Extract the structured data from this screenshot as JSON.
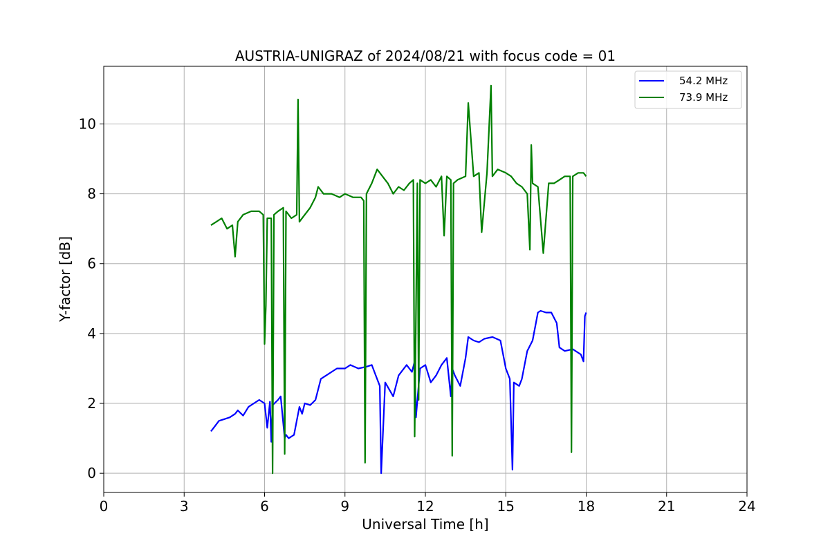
{
  "chart_data": {
    "type": "line",
    "title": "AUSTRIA-UNIGRAZ of 2024/08/21 with focus code = 01",
    "xlabel": "Universal Time [h]",
    "ylabel": "Y-factor [dB]",
    "xlim": [
      0,
      24
    ],
    "ylim": [
      -0.55,
      11.65
    ],
    "xticks": [
      0,
      3,
      6,
      9,
      12,
      15,
      18,
      21,
      24
    ],
    "xtick_labels": [
      "0",
      "3",
      "6",
      "9",
      "12",
      "15",
      "18",
      "21",
      "24"
    ],
    "yticks": [
      0,
      2,
      4,
      6,
      8,
      10
    ],
    "ytick_labels": [
      "0",
      "2",
      "4",
      "6",
      "8",
      "10"
    ],
    "grid": true,
    "legend_position": "top-right",
    "series": [
      {
        "name": "54.2 MHz",
        "color": "#0000ff",
        "x": [
          4.0,
          4.1,
          4.3,
          4.5,
          4.7,
          4.9,
          5.0,
          5.2,
          5.4,
          5.6,
          5.8,
          6.0,
          6.1,
          6.2,
          6.25,
          6.3,
          6.5,
          6.6,
          6.75,
          6.8,
          6.9,
          7.1,
          7.3,
          7.4,
          7.5,
          7.7,
          7.9,
          8.1,
          8.3,
          8.5,
          8.7,
          9.0,
          9.2,
          9.5,
          9.8,
          10.0,
          10.15,
          10.3,
          10.35,
          10.5,
          10.8,
          11.0,
          11.3,
          11.5,
          11.6,
          11.65,
          11.8,
          12.0,
          12.2,
          12.4,
          12.6,
          12.8,
          12.95,
          13.0,
          13.1,
          13.3,
          13.5,
          13.6,
          13.8,
          14.0,
          14.2,
          14.5,
          14.8,
          15.0,
          15.15,
          15.25,
          15.3,
          15.5,
          15.6,
          15.8,
          16.0,
          16.2,
          16.3,
          16.5,
          16.7,
          16.9,
          17.0,
          17.2,
          17.5,
          17.8,
          17.9,
          17.95,
          18.0
        ],
        "values": [
          1.2,
          1.3,
          1.5,
          1.55,
          1.6,
          1.7,
          1.8,
          1.65,
          1.9,
          2.0,
          2.1,
          2.0,
          1.3,
          2.05,
          0.9,
          1.95,
          2.1,
          2.2,
          1.0,
          1.1,
          1.0,
          1.1,
          1.9,
          1.7,
          2.0,
          1.95,
          2.1,
          2.7,
          2.8,
          2.9,
          3.0,
          3.0,
          3.1,
          3.0,
          3.05,
          3.1,
          2.8,
          2.5,
          0.0,
          2.6,
          2.2,
          2.8,
          3.1,
          2.9,
          3.2,
          1.6,
          3.0,
          3.1,
          2.6,
          2.8,
          3.1,
          3.3,
          2.2,
          3.0,
          2.8,
          2.5,
          3.3,
          3.9,
          3.8,
          3.75,
          3.85,
          3.9,
          3.8,
          3.0,
          2.7,
          0.1,
          2.6,
          2.5,
          2.7,
          3.5,
          3.8,
          4.6,
          4.65,
          4.6,
          4.6,
          4.3,
          3.6,
          3.5,
          3.55,
          3.4,
          3.2,
          4.5,
          4.6
        ]
      },
      {
        "name": "73.9 MHz",
        "color": "#008000",
        "x": [
          4.0,
          4.2,
          4.4,
          4.6,
          4.8,
          4.9,
          5.0,
          5.2,
          5.5,
          5.8,
          5.95,
          6.0,
          6.05,
          6.1,
          6.25,
          6.3,
          6.35,
          6.5,
          6.7,
          6.75,
          6.8,
          7.0,
          7.2,
          7.25,
          7.3,
          7.5,
          7.7,
          7.9,
          8.0,
          8.2,
          8.5,
          8.8,
          9.0,
          9.3,
          9.6,
          9.7,
          9.75,
          9.8,
          10.0,
          10.2,
          10.4,
          10.6,
          10.8,
          11.0,
          11.2,
          11.4,
          11.55,
          11.6,
          11.7,
          11.75,
          11.8,
          12.0,
          12.2,
          12.4,
          12.6,
          12.7,
          12.8,
          12.95,
          13.0,
          13.05,
          13.2,
          13.5,
          13.6,
          13.8,
          14.0,
          14.1,
          14.3,
          14.45,
          14.5,
          14.7,
          15.0,
          15.2,
          15.4,
          15.6,
          15.8,
          15.9,
          15.95,
          16.0,
          16.2,
          16.4,
          16.6,
          16.8,
          17.0,
          17.2,
          17.4,
          17.45,
          17.5,
          17.7,
          17.9,
          18.0
        ],
        "values": [
          7.1,
          7.2,
          7.3,
          7.0,
          7.1,
          6.2,
          7.2,
          7.4,
          7.5,
          7.5,
          7.4,
          3.7,
          4.8,
          7.3,
          7.3,
          0.0,
          7.4,
          7.5,
          7.6,
          0.55,
          7.5,
          7.3,
          7.4,
          10.7,
          7.2,
          7.4,
          7.6,
          7.9,
          8.2,
          8.0,
          8.0,
          7.9,
          8.0,
          7.9,
          7.9,
          7.8,
          0.3,
          8.0,
          8.3,
          8.7,
          8.5,
          8.3,
          8.0,
          8.2,
          8.1,
          8.3,
          8.4,
          1.05,
          8.3,
          2.1,
          8.4,
          8.3,
          8.4,
          8.2,
          8.5,
          6.8,
          8.5,
          8.4,
          0.5,
          8.3,
          8.4,
          8.5,
          10.6,
          8.5,
          8.6,
          6.9,
          8.6,
          11.1,
          8.5,
          8.7,
          8.6,
          8.5,
          8.3,
          8.2,
          8.0,
          6.4,
          9.4,
          8.3,
          8.2,
          6.3,
          8.3,
          8.3,
          8.4,
          8.5,
          8.5,
          0.6,
          8.5,
          8.6,
          8.6,
          8.5
        ]
      }
    ]
  }
}
